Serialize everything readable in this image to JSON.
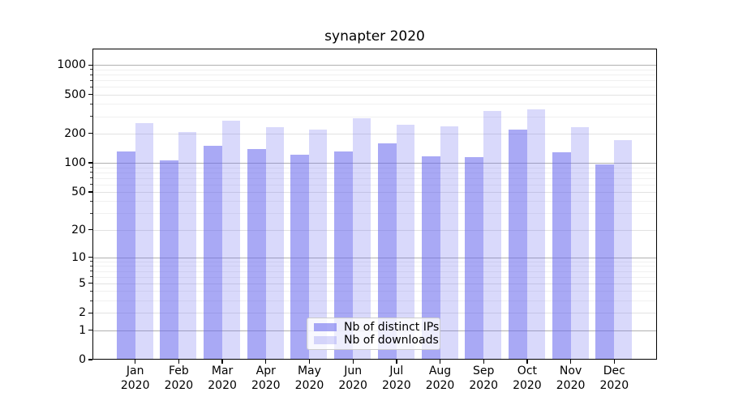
{
  "title": "synapter 2020",
  "chart_data": {
    "type": "bar",
    "title": "synapter 2020",
    "year": "2020",
    "categories": [
      "Jan 2020",
      "Feb 2020",
      "Mar 2020",
      "Apr 2020",
      "May 2020",
      "Jun 2020",
      "Jul 2020",
      "Aug 2020",
      "Sep 2020",
      "Oct 2020",
      "Nov 2020",
      "Dec 2020"
    ],
    "months": [
      "Jan",
      "Feb",
      "Mar",
      "Apr",
      "May",
      "Jun",
      "Jul",
      "Aug",
      "Sep",
      "Oct",
      "Nov",
      "Dec"
    ],
    "series": [
      {
        "name": "Nb of distinct IPs",
        "color": "rgba(102,102,238,0.56)",
        "values": [
          130,
          105,
          150,
          139,
          122,
          132,
          157,
          117,
          115,
          220,
          128,
          97
        ]
      },
      {
        "name": "Nb of downloads",
        "color": "rgba(102,102,238,0.25)",
        "values": [
          254,
          207,
          270,
          232,
          218,
          288,
          247,
          238,
          340,
          350,
          230,
          171
        ]
      }
    ],
    "base_color": "#6666ee",
    "y_scale": "log1p",
    "y_ticks": [
      0,
      1,
      2,
      5,
      10,
      20,
      50,
      100,
      200,
      500,
      1000
    ],
    "y_minor_ticks": [
      3,
      4,
      6,
      7,
      8,
      9,
      30,
      40,
      60,
      70,
      80,
      90,
      300,
      400,
      600,
      700,
      800,
      900
    ],
    "ylim": [
      0,
      1470
    ],
    "xlabel": "",
    "ylabel": "",
    "grid": true,
    "legend_position": "lower center"
  }
}
